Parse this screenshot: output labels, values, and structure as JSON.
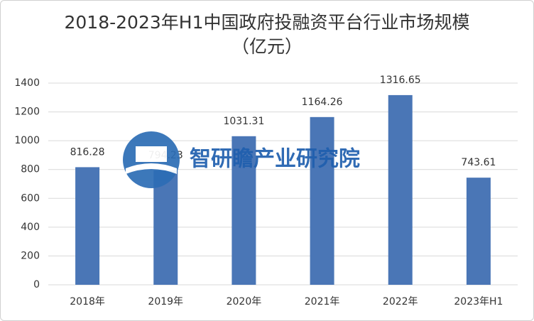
{
  "chart_data": {
    "type": "bar",
    "title": "2018-2023年H1中国政府投融资平台行业市场规模（亿元）",
    "categories": [
      "2018年",
      "2019年",
      "2020年",
      "2021年",
      "2022年",
      "2023年H1"
    ],
    "values": [
      816.28,
      794.23,
      1031.31,
      1164.26,
      1316.65,
      743.61
    ],
    "color": "#4a76b6",
    "ylim": [
      0,
      1400
    ],
    "yticks": [
      0,
      200,
      400,
      600,
      800,
      1000,
      1200,
      1400
    ],
    "grid": true,
    "watermark": "智研瞻产业研究院"
  }
}
